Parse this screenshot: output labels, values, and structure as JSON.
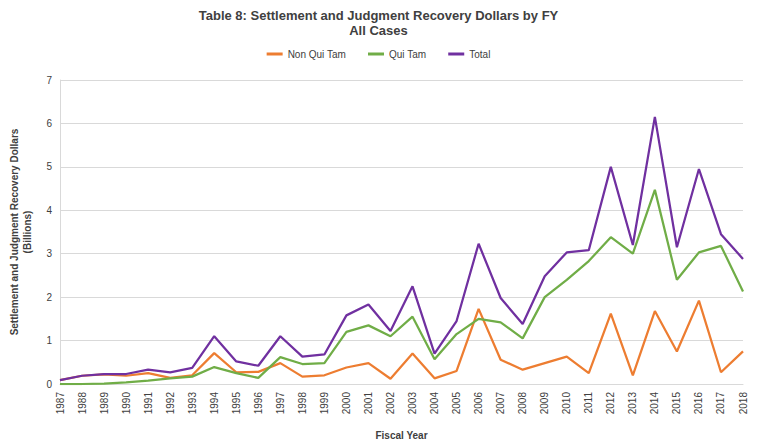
{
  "chart_data": {
    "type": "line",
    "title": "Table 8: Settlement and Judgment Recovery Dollars by FY",
    "subtitle": "All Cases",
    "x_label": "Fiscal Year",
    "y_label": "Settlement and Judgment Recovery Dollars\n(Billions)",
    "categories": [
      "1987",
      "1988",
      "1989",
      "1990",
      "1991",
      "1992",
      "1993",
      "1994",
      "1995",
      "1996",
      "1997",
      "1998",
      "1999",
      "2000",
      "2001",
      "2002",
      "2003",
      "2004",
      "2005",
      "2006",
      "2007",
      "2008",
      "2009",
      "2010",
      "2011",
      "2012",
      "2013",
      "2014",
      "2015",
      "2016",
      "2017",
      "2018"
    ],
    "series": [
      {
        "name": "Non Qui Tam",
        "color": "#ed7d31",
        "values": [
          0.09,
          0.19,
          0.22,
          0.19,
          0.25,
          0.14,
          0.2,
          0.71,
          0.27,
          0.28,
          0.48,
          0.17,
          0.2,
          0.38,
          0.48,
          0.12,
          0.7,
          0.13,
          0.3,
          1.73,
          0.56,
          0.33,
          0.48,
          0.63,
          0.25,
          1.62,
          0.2,
          1.68,
          0.75,
          1.92,
          0.27,
          0.75
        ]
      },
      {
        "name": "Qui Tam",
        "color": "#70ad47",
        "values": [
          0.0,
          0.0,
          0.01,
          0.04,
          0.08,
          0.13,
          0.17,
          0.39,
          0.25,
          0.14,
          0.62,
          0.46,
          0.48,
          1.2,
          1.35,
          1.1,
          1.55,
          0.57,
          1.15,
          1.5,
          1.42,
          1.05,
          2.0,
          2.4,
          2.83,
          3.38,
          3.0,
          4.47,
          2.4,
          3.03,
          3.18,
          2.13
        ]
      },
      {
        "name": "Total",
        "color": "#7030a0",
        "values": [
          0.09,
          0.19,
          0.23,
          0.23,
          0.33,
          0.27,
          0.37,
          1.1,
          0.52,
          0.42,
          1.1,
          0.63,
          0.68,
          1.58,
          1.83,
          1.22,
          2.25,
          0.7,
          1.45,
          3.23,
          1.98,
          1.38,
          2.48,
          3.03,
          3.08,
          5.0,
          3.2,
          6.15,
          3.15,
          4.95,
          3.45,
          2.88
        ]
      }
    ],
    "ylim": [
      0,
      7
    ],
    "yticks": [
      0,
      1,
      2,
      3,
      4,
      5,
      6,
      7
    ],
    "grid": true,
    "legend": "top"
  }
}
